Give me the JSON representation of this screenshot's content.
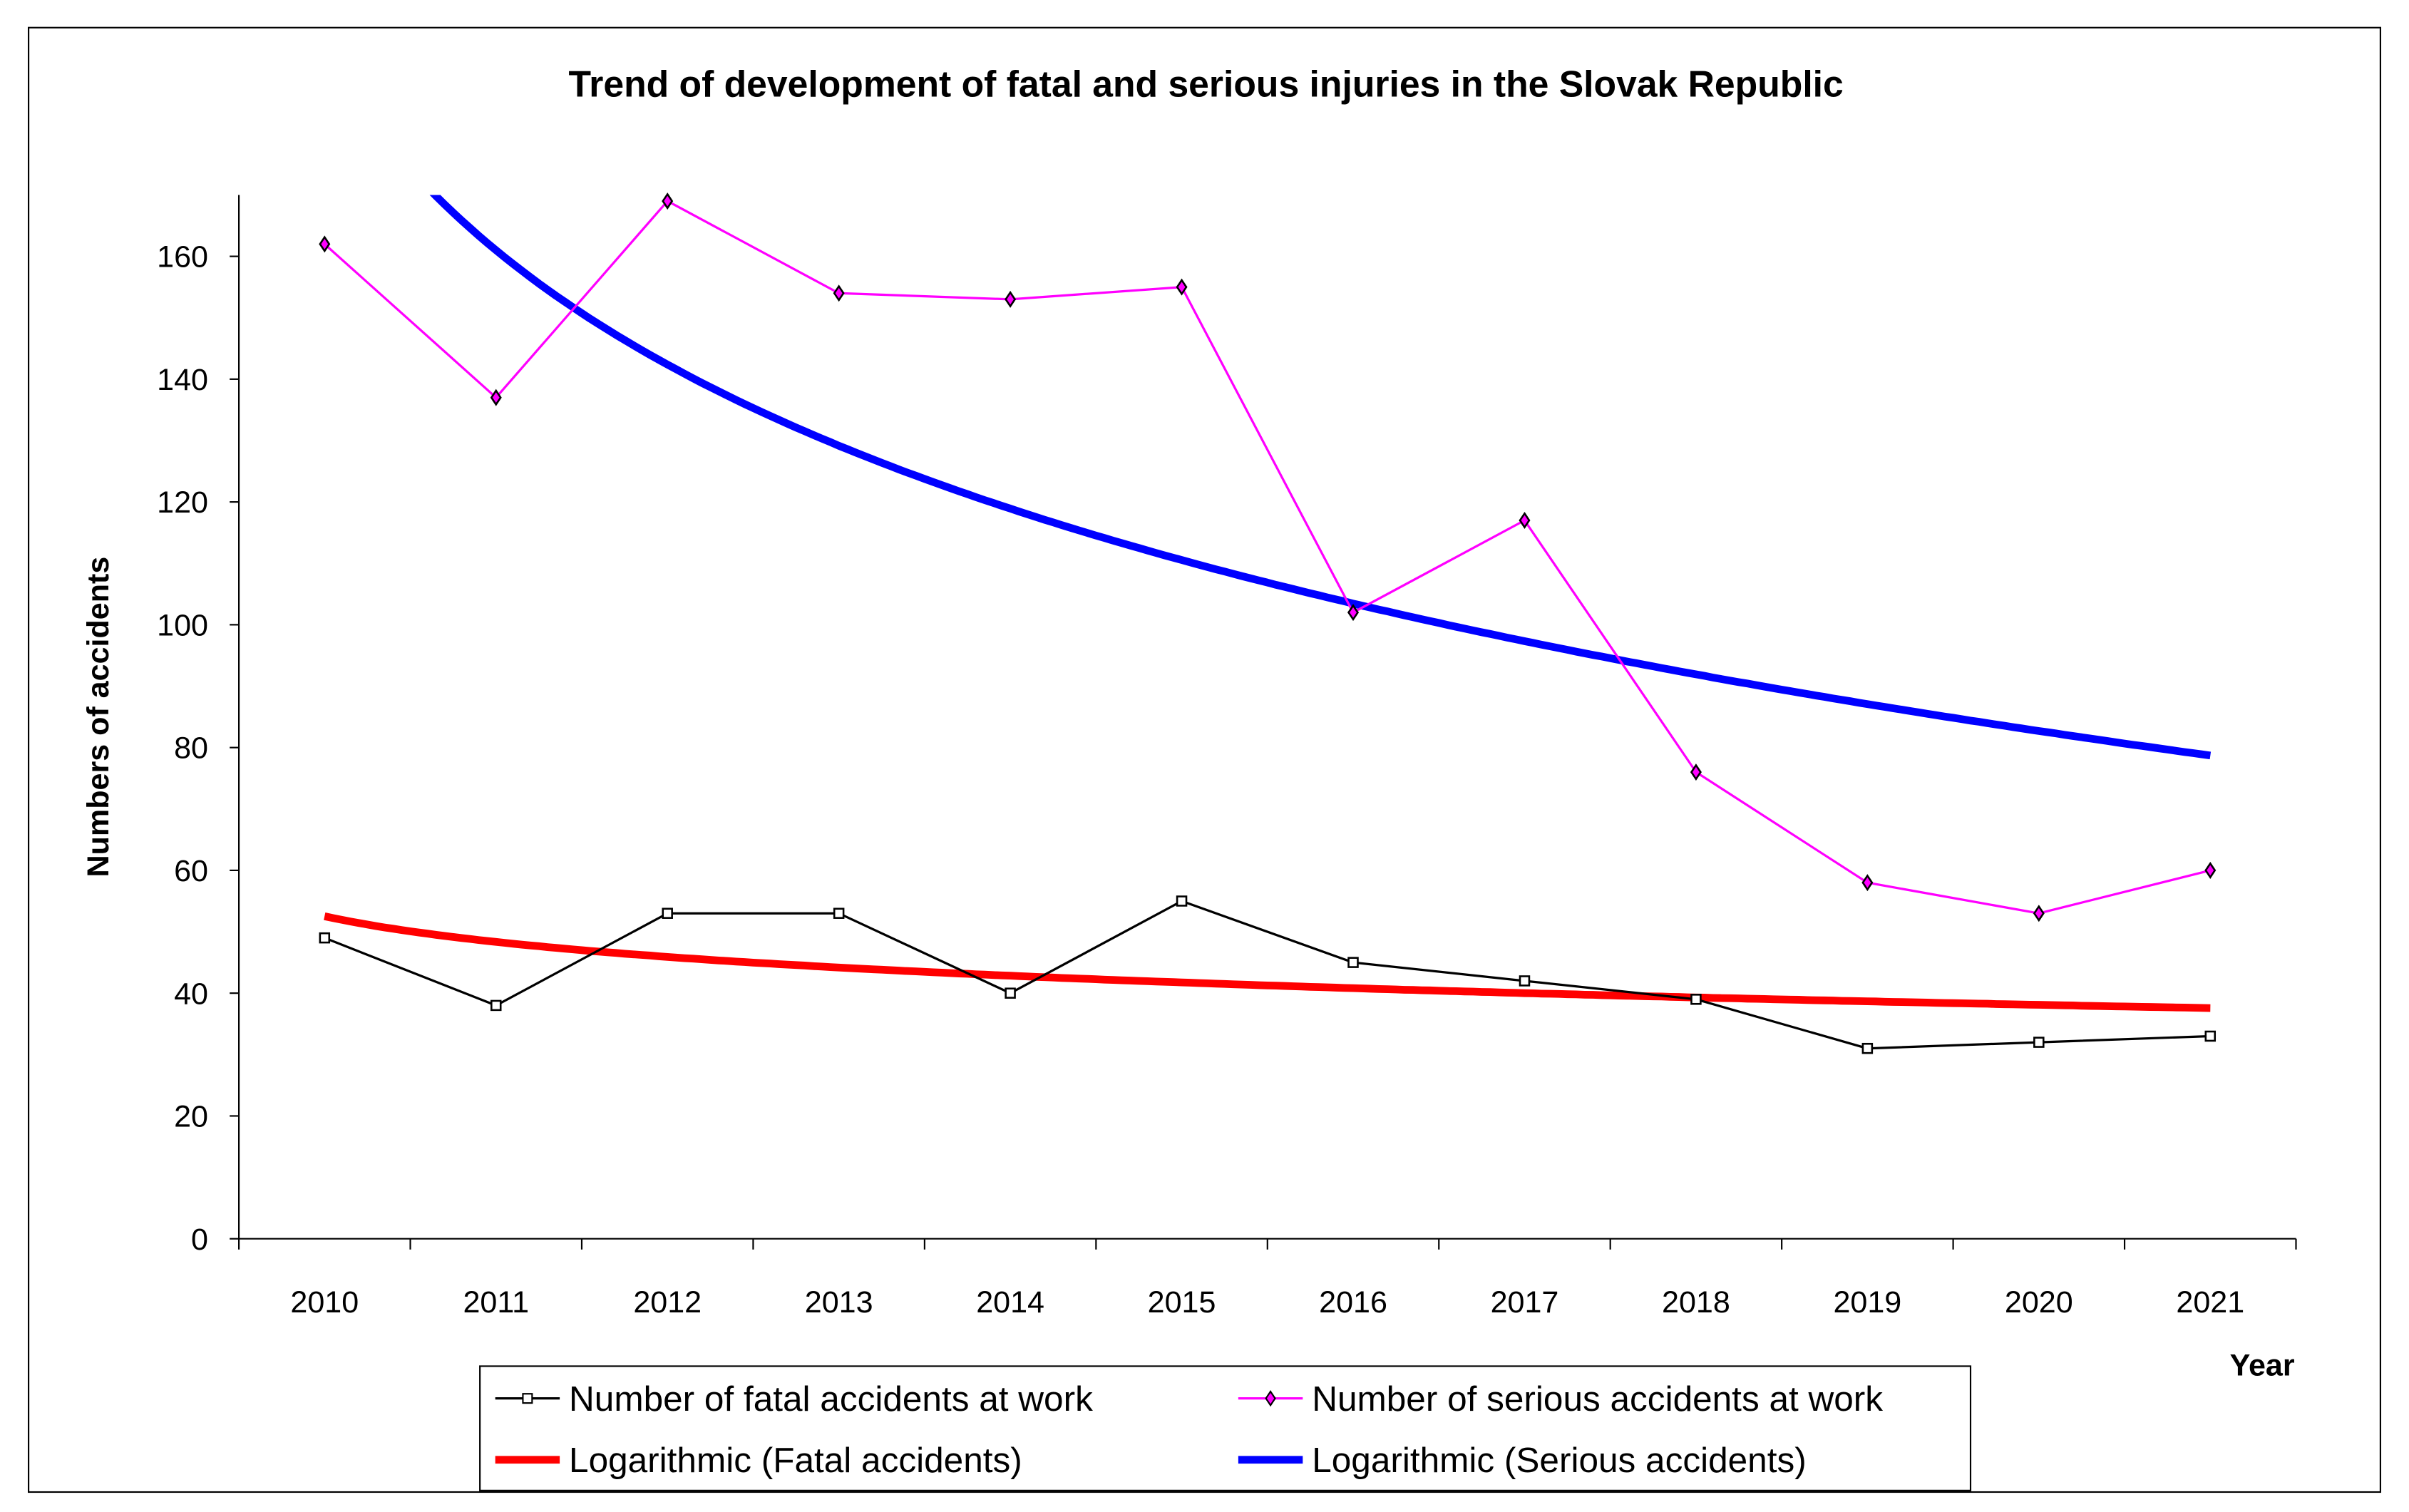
{
  "chart_data": {
    "type": "line",
    "title": "Trend of development of fatal and serious injuries in the Slovak Republic",
    "xlabel": "Year",
    "ylabel": "Numbers of accidents",
    "categories": [
      "2010",
      "2011",
      "2012",
      "2013",
      "2014",
      "2015",
      "2016",
      "2017",
      "2018",
      "2019",
      "2020",
      "2021"
    ],
    "ylim": [
      0,
      170
    ],
    "yticks": [
      0,
      20,
      40,
      60,
      80,
      100,
      120,
      140,
      160
    ],
    "grid": false,
    "legend_position": "bottom",
    "series": [
      {
        "name": "Number of fatal accidents at work",
        "values": [
          49,
          38,
          53,
          53,
          40,
          55,
          45,
          42,
          39,
          31,
          32,
          33
        ],
        "color": "#000000",
        "marker": "square"
      },
      {
        "name": "Number of serious accidents at work",
        "values": [
          162,
          137,
          169,
          154,
          153,
          155,
          102,
          117,
          76,
          58,
          53,
          60
        ],
        "color": "#ff00ff",
        "marker": "diamond"
      }
    ],
    "trendlines": [
      {
        "name": "Logarithmic (Fatal accidents)",
        "of_series": 0,
        "type": "logarithmic",
        "color": "#ff0000"
      },
      {
        "name": "Logarithmic (Serious accidents)",
        "of_series": 1,
        "type": "logarithmic",
        "color": "#0000ff"
      }
    ]
  }
}
